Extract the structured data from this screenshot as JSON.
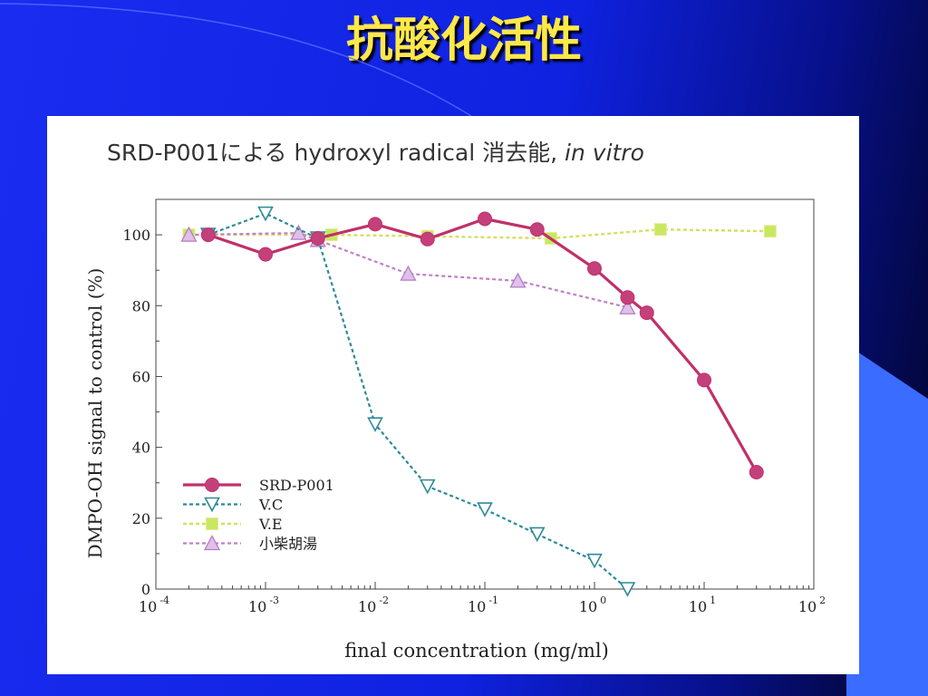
{
  "slide": {
    "title": "抗酸化活性"
  },
  "colors": {
    "slide_bg": "#1a2cf0",
    "title": "#ffe84a",
    "srd": "#c0306a",
    "srd_marker": "#c4407a",
    "vc": "#2e8a98",
    "ve_line": "#d8de60",
    "ve_marker": "#c8e860",
    "saiko_line": "#c080c8",
    "saiko_marker": "#e0c0ea"
  },
  "chart_data": {
    "type": "line",
    "title": "SRD-P001による hydroxyl radical 消去能,",
    "title_italic": "in vitro",
    "xlabel": "final concentration (mg/ml)",
    "ylabel": "DMPO-OH signal to control (%)",
    "x_scale": "log",
    "xlim": [
      0.0001,
      100
    ],
    "ylim": [
      0,
      110
    ],
    "x_ticks": [
      {
        "v": 0.0001,
        "base": "10",
        "exp": "-4"
      },
      {
        "v": 0.001,
        "base": "10",
        "exp": "-3"
      },
      {
        "v": 0.01,
        "base": "10",
        "exp": "-2"
      },
      {
        "v": 0.1,
        "base": "10",
        "exp": "-1"
      },
      {
        "v": 1,
        "base": "10",
        "exp": "0"
      },
      {
        "v": 10,
        "base": "10",
        "exp": "1"
      },
      {
        "v": 100,
        "base": "10",
        "exp": "2"
      }
    ],
    "y_ticks": [
      0,
      20,
      40,
      60,
      80,
      100
    ],
    "grid": false,
    "legend_position": "lower-left",
    "series": [
      {
        "name": "SRD-P001",
        "marker": "circle",
        "style": "solid",
        "points": [
          [
            0.0003,
            100
          ],
          [
            0.001,
            94.5
          ],
          [
            0.003,
            99
          ],
          [
            0.01,
            103
          ],
          [
            0.03,
            98.8
          ],
          [
            0.1,
            104.5
          ],
          [
            0.3,
            101.5
          ],
          [
            1,
            90.5
          ],
          [
            2,
            82.3
          ],
          [
            3,
            78
          ],
          [
            10,
            59
          ],
          [
            30,
            33
          ]
        ]
      },
      {
        "name": "V.C",
        "marker": "triangle-down",
        "style": "dotted",
        "points": [
          [
            0.0003,
            100
          ],
          [
            0.001,
            106
          ],
          [
            0.003,
            99
          ],
          [
            0.01,
            46.5
          ],
          [
            0.03,
            29
          ],
          [
            0.1,
            22.5
          ],
          [
            0.3,
            15.5
          ],
          [
            1,
            8
          ],
          [
            2,
            0
          ]
        ]
      },
      {
        "name": "V.E",
        "marker": "square",
        "style": "dotted",
        "points": [
          [
            0.0002,
            100
          ],
          [
            0.004,
            100
          ],
          [
            0.03,
            99.6
          ],
          [
            0.4,
            99
          ],
          [
            4,
            101.5
          ],
          [
            40,
            101
          ]
        ]
      },
      {
        "name": "小柴胡湯",
        "marker": "triangle-up",
        "style": "dotted",
        "points": [
          [
            0.0002,
            100
          ],
          [
            0.002,
            100.5
          ],
          [
            0.003,
            98.5
          ],
          [
            0.02,
            89
          ],
          [
            0.2,
            87
          ],
          [
            2,
            79.5
          ]
        ]
      }
    ]
  }
}
